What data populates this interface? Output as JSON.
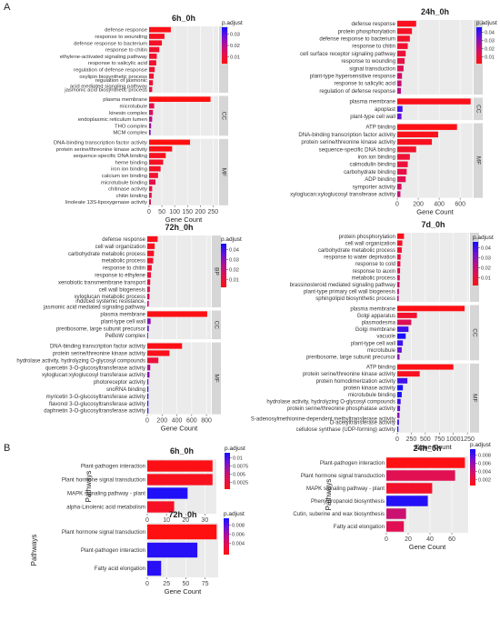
{
  "figure": {
    "panel_a": "A",
    "panel_b": "B"
  },
  "colorbar_colors": [
    "#1010ff",
    "#6a10d8",
    "#b5108e",
    "#e5104a",
    "#ff1010"
  ],
  "chart_data": [
    {
      "type": "bar",
      "orientation": "horizontal",
      "title": "6h_0h",
      "xlabel": "Gene Count",
      "ylabel": "",
      "xlim": [
        0,
        270
      ],
      "xticks": [
        0,
        50,
        100,
        150,
        200,
        250
      ],
      "legend": {
        "title": "p.adjust",
        "ticks": [
          0.03,
          0.02,
          0.01
        ],
        "range": [
          0.004,
          0.036
        ],
        "placement": "right"
      },
      "groups": [
        {
          "name": "BP",
          "categories": [
            "defense response",
            "response to wounding",
            "defense response to bacterium",
            "response to chitin",
            "ethylene-activated signaling pathway",
            "response to salicylic acid",
            "regulation of defense response",
            "oxylipin biosynthetic process",
            "regulation of jasmonic acid mediated signaling pathway",
            "jasmonic acid biosynthetic process"
          ],
          "values": [
            85,
            60,
            50,
            40,
            30,
            28,
            22,
            18,
            15,
            12
          ],
          "padj": [
            0.005,
            0.006,
            0.007,
            0.008,
            0.008,
            0.008,
            0.009,
            0.009,
            0.009,
            0.01
          ]
        },
        {
          "name": "CC",
          "categories": [
            "plasma membrane",
            "microtubule",
            "kinesin complex",
            "endoplasmic reticulum lumen",
            "THO complex",
            "MCM complex"
          ],
          "values": [
            240,
            20,
            15,
            12,
            8,
            6
          ],
          "padj": [
            0.004,
            0.012,
            0.014,
            0.02,
            0.022,
            0.026
          ]
        },
        {
          "name": "MF",
          "categories": [
            "DNA-binding transcription factor activity",
            "protein serine/threonine kinase activity",
            "sequence-specific DNA binding",
            "heme binding",
            "iron ion binding",
            "calcium ion binding",
            "microtubule binding",
            "chitinase activity",
            "chitin binding",
            "linoleate 13S-lipoxygenase activity"
          ],
          "values": [
            160,
            90,
            65,
            55,
            45,
            35,
            25,
            12,
            10,
            7
          ],
          "padj": [
            0.004,
            0.005,
            0.006,
            0.007,
            0.007,
            0.008,
            0.012,
            0.01,
            0.012,
            0.014
          ]
        }
      ]
    },
    {
      "type": "bar",
      "orientation": "horizontal",
      "title": "24h_0h",
      "xlabel": "Gene Count",
      "ylabel": "",
      "xlim": [
        0,
        720
      ],
      "xticks": [
        0,
        200,
        400,
        600
      ],
      "legend": {
        "title": "p.adjust",
        "ticks": [
          0.04,
          0.03,
          0.02,
          0.01
        ],
        "range": [
          0.002,
          0.046
        ],
        "placement": "right"
      },
      "groups": [
        {
          "name": "BP",
          "categories": [
            "defense response",
            "protein phosphorylation",
            "defense response to bacterium",
            "response to chitin",
            "cell surface receptor signaling pathway",
            "response to wounding",
            "signal transduction",
            "plant-type hypersensitive response",
            "response to salicylic acid",
            "regulation of defense response"
          ],
          "values": [
            180,
            140,
            120,
            100,
            80,
            70,
            60,
            45,
            40,
            35
          ],
          "padj": [
            0.005,
            0.006,
            0.007,
            0.008,
            0.01,
            0.012,
            0.015,
            0.018,
            0.02,
            0.022
          ]
        },
        {
          "name": "CC",
          "categories": [
            "plasma membrane",
            "apoplast",
            "plant-type cell wall"
          ],
          "values": [
            700,
            50,
            40
          ],
          "padj": [
            0.004,
            0.04,
            0.035
          ]
        },
        {
          "name": "MF",
          "categories": [
            "ATP binding",
            "DNA-binding transcription factor activity",
            "protein serine/threonine kinase activity",
            "sequence-specific DNA binding",
            "iron ion binding",
            "calmodulin binding",
            "carbohydrate binding",
            "ADP binding",
            "symporter activity",
            "xyloglucan:xyloglucosyl transferase activity"
          ],
          "values": [
            570,
            390,
            330,
            180,
            120,
            100,
            90,
            80,
            40,
            30
          ],
          "padj": [
            0.003,
            0.004,
            0.005,
            0.007,
            0.009,
            0.01,
            0.012,
            0.014,
            0.016,
            0.02
          ]
        }
      ]
    },
    {
      "type": "bar",
      "orientation": "horizontal",
      "title": "72h_0h",
      "xlabel": "Gene Count",
      "ylabel": "",
      "xlim": [
        0,
        860
      ],
      "xticks": [
        0,
        200,
        400,
        600,
        800
      ],
      "legend": {
        "title": "p.adjust",
        "ticks": [
          0.04,
          0.03,
          0.02,
          0.01
        ],
        "range": [
          0.002,
          0.046
        ],
        "placement": "right"
      },
      "groups": [
        {
          "name": "BP",
          "categories": [
            "defense response",
            "cell wall organization",
            "carbohydrate metabolic process",
            "metabolic process",
            "response to chitin",
            "response to ethylene",
            "xenobiotic transmembrane transport",
            "cell wall biogenesis",
            "xyloglucan metabolic process",
            "induced systemic resistance, jasmonic acid mediated signaling pathway"
          ],
          "values": [
            140,
            100,
            90,
            80,
            60,
            50,
            40,
            35,
            30,
            20
          ],
          "padj": [
            0.004,
            0.005,
            0.006,
            0.007,
            0.008,
            0.01,
            0.012,
            0.014,
            0.016,
            0.02
          ]
        },
        {
          "name": "CC",
          "categories": [
            "plasma membrane",
            "plant-type cell wall",
            "preribosome, large subunit precursor",
            "PeBoW complex"
          ],
          "values": [
            810,
            45,
            20,
            10
          ],
          "padj": [
            0.003,
            0.03,
            0.035,
            0.04
          ]
        },
        {
          "name": "MF",
          "categories": [
            "DNA-binding transcription factor activity",
            "protein serine/threonine kinase activity",
            "hydrolase activity, hydrolyzing O-glycosyl compounds",
            "quercetin 3-O-glucosyltransferase activity",
            "xyloglucan:xyloglucosyl transferase activity",
            "photoreceptor activity",
            "snoRNA binding",
            "myricetin 3-O-glucosyltransferase activity",
            "flavonol 3-O-glucosyltransferase activity",
            "daphnetin 3-O-glucosyltransferase activity"
          ],
          "values": [
            470,
            300,
            150,
            40,
            30,
            15,
            15,
            15,
            15,
            15
          ],
          "padj": [
            0.003,
            0.004,
            0.01,
            0.025,
            0.03,
            0.035,
            0.04,
            0.04,
            0.04,
            0.04
          ]
        }
      ]
    },
    {
      "type": "bar",
      "orientation": "horizontal",
      "title": "7d_0h",
      "xlabel": "Gene Count",
      "ylabel": "",
      "xlim": [
        0,
        1280
      ],
      "xticks": [
        0,
        250,
        500,
        750,
        1000,
        1250
      ],
      "legend": {
        "title": "p.adjust",
        "ticks": [
          0.04,
          0.03,
          0.02,
          0.01
        ],
        "range": [
          0.002,
          0.046
        ],
        "placement": "right"
      },
      "groups": [
        {
          "name": "BP",
          "categories": [
            "protein phosphorylation",
            "cell wall organization",
            "carbohydrate metabolic process",
            "response to water deprivation",
            "response to cold",
            "response to auxin",
            "metabolic process",
            "brassinosteroid mediated signaling pathway",
            "plant-type primary cell wall biogenesis",
            "sphingolipid biosynthetic process"
          ],
          "values": [
            120,
            90,
            80,
            60,
            55,
            50,
            45,
            40,
            30,
            25
          ],
          "padj": [
            0.004,
            0.006,
            0.008,
            0.01,
            0.012,
            0.014,
            0.016,
            0.018,
            0.02,
            0.022
          ]
        },
        {
          "name": "CC",
          "categories": [
            "plasma membrane",
            "Golgi apparatus",
            "plasmodesma",
            "Golgi membrane",
            "vacuole",
            "plant-type cell wall",
            "microtubule",
            "preribosome, large subunit precursor"
          ],
          "values": [
            1200,
            350,
            250,
            200,
            150,
            100,
            80,
            40
          ],
          "padj": [
            0.003,
            0.008,
            0.015,
            0.04,
            0.045,
            0.04,
            0.035,
            0.03
          ]
        },
        {
          "name": "MF",
          "categories": [
            "ATP binding",
            "protein serine/threonine kinase activity",
            "protein homodimerization activity",
            "protein kinase activity",
            "microtubule binding",
            "hydrolase activity, hydrolyzing O-glycosyl compounds",
            "protein serine/threonine phosphatase activity",
            "S-adenosylmethionine-dependent methyltransferase activity",
            "O-acetyltransferase activity",
            "cellulose synthase (UDP-forming) activity"
          ],
          "values": [
            1000,
            400,
            180,
            100,
            80,
            60,
            50,
            40,
            30,
            20
          ],
          "padj": [
            0.003,
            0.005,
            0.04,
            0.045,
            0.045,
            0.04,
            0.035,
            0.03,
            0.04,
            0.045
          ]
        }
      ]
    },
    {
      "type": "bar",
      "orientation": "horizontal",
      "title": "6h_0h",
      "xlabel": "Gene Count",
      "ylabel": "Pathways",
      "xlim": [
        0,
        36
      ],
      "xticks": [
        0,
        10,
        20,
        30
      ],
      "legend": {
        "title": "p.adjust",
        "ticks": [
          0.01,
          0.0075,
          0.005,
          0.0025
        ],
        "range": [
          0.0005,
          0.0115
        ],
        "placement": "right"
      },
      "groups": [
        {
          "name": "",
          "categories": [
            "Plant-pathogen interaction",
            "Plant hormone signal transduction",
            "MAPK signaling pathway - plant",
            "alpha-Linolenic acid metabolism"
          ],
          "values": [
            34,
            34,
            21,
            14
          ],
          "padj": [
            0.0008,
            0.0012,
            0.011,
            0.0015
          ]
        }
      ]
    },
    {
      "type": "bar",
      "orientation": "horizontal",
      "title": "24h_0h",
      "xlabel": "Gene Count",
      "ylabel": "Pathways",
      "xlim": [
        0,
        75
      ],
      "xticks": [
        0,
        20,
        40,
        60
      ],
      "legend": {
        "title": "p.adjust",
        "ticks": [
          0.008,
          0.006,
          0.004,
          0.002
        ],
        "range": [
          0.0005,
          0.0095
        ],
        "placement": "right"
      },
      "groups": [
        {
          "name": "",
          "categories": [
            "Plant-pathogen interaction",
            "Plant hormone signal transduction",
            "MAPK signaling pathway - plant",
            "Phenylpropanoid biosynthesis",
            "Cutin, suberine and wax biosynthesis",
            "Fatty acid elongation"
          ],
          "values": [
            72,
            63,
            42,
            38,
            18,
            16
          ],
          "padj": [
            0.0006,
            0.003,
            0.0015,
            0.009,
            0.004,
            0.003
          ]
        }
      ]
    },
    {
      "type": "bar",
      "orientation": "horizontal",
      "title": "72h_0h",
      "xlabel": "Gene Count",
      "ylabel": "Pathways",
      "xlim": [
        0,
        92
      ],
      "xticks": [
        0,
        25,
        50,
        75
      ],
      "legend": {
        "title": "p.adjust",
        "ticks": [
          0.008,
          0.006,
          0.004
        ],
        "range": [
          0.0015,
          0.0095
        ],
        "placement": "right"
      },
      "groups": [
        {
          "name": "",
          "categories": [
            "Plant hormone signal transduction",
            "Plant-pathogen interaction",
            "Fatty acid elongation"
          ],
          "values": [
            90,
            65,
            18
          ],
          "padj": [
            0.0015,
            0.009,
            0.009
          ]
        }
      ]
    }
  ]
}
